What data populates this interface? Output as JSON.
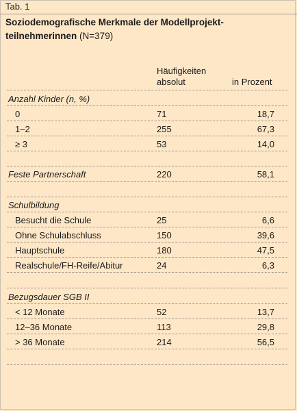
{
  "tab_label": "Tab. 1",
  "title": {
    "line1": "Soziodemografische Merkmale der Modellprojekt-",
    "line2": "teilnehmerinnen",
    "n": "(N=379)"
  },
  "columns": {
    "abs_line1": "Häufigkeiten",
    "abs_line2": "absolut",
    "pct": "in Prozent"
  },
  "sections": [
    {
      "label": "Anzahl Kinder (n, %)",
      "rows": [
        {
          "label": "0",
          "abs": "71",
          "pct": "18,7"
        },
        {
          "label": "1–2",
          "abs": "255",
          "pct": "67,3"
        },
        {
          "label": "≥ 3",
          "abs": "53",
          "pct": "14,0"
        }
      ]
    },
    {
      "label": "Feste Partnerschaft",
      "abs": "220",
      "pct": "58,1"
    },
    {
      "label": "Schulbildung",
      "rows": [
        {
          "label": "Besucht die Schule",
          "abs": "25",
          "pct": "6,6"
        },
        {
          "label": "Ohne Schulabschluss",
          "abs": "150",
          "pct": "39,6"
        },
        {
          "label": "Hauptschule",
          "abs": "180",
          "pct": "47,5"
        },
        {
          "label": "Realschule/FH-Reife/Abitur",
          "abs": "24",
          "pct": "6,3"
        }
      ]
    },
    {
      "label": "Bezugsdauer SGB II",
      "rows": [
        {
          "label": "< 12 Monate",
          "abs": "52",
          "pct": "13,7"
        },
        {
          "label": "12–36 Monate",
          "abs": "113",
          "pct": "29,8"
        },
        {
          "label": "> 36 Monate",
          "abs": "214",
          "pct": "56,5"
        }
      ]
    }
  ]
}
